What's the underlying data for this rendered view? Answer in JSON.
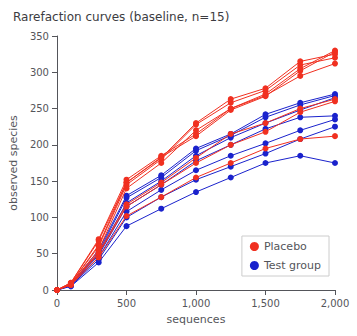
{
  "chart_data": {
    "type": "line",
    "title": "Rarefaction curves (baseline, n=15)",
    "xlabel": "sequences",
    "ylabel": "observed species",
    "x": [
      0,
      100,
      300,
      500,
      750,
      1000,
      1250,
      1500,
      1750,
      2000
    ],
    "xlim": [
      0,
      2000
    ],
    "ylim": [
      0,
      350
    ],
    "xticks": [
      0,
      500,
      1000,
      1500,
      2000
    ],
    "yticks": [
      0,
      50,
      100,
      150,
      200,
      250,
      300,
      350
    ],
    "grid": false,
    "legend": "lower right",
    "marker": "circle",
    "series": [
      {
        "name": "Placebo",
        "color": "#f03020",
        "values": [
          0,
          10,
          70,
          152,
          185,
          215,
          250,
          270,
          305,
          330
        ]
      },
      {
        "name": "Placebo",
        "color": "#f03020",
        "values": [
          0,
          10,
          68,
          148,
          183,
          212,
          248,
          267,
          302,
          328
        ]
      },
      {
        "name": "Placebo",
        "color": "#f03020",
        "values": [
          0,
          9,
          62,
          148,
          182,
          230,
          263,
          278,
          315,
          325
        ]
      },
      {
        "name": "Placebo",
        "color": "#f03020",
        "values": [
          0,
          9,
          60,
          145,
          180,
          228,
          258,
          275,
          310,
          320
        ]
      },
      {
        "name": "Placebo",
        "color": "#f03020",
        "values": [
          0,
          8,
          55,
          140,
          175,
          220,
          250,
          268,
          295,
          312
        ]
      },
      {
        "name": "Placebo",
        "color": "#f03020",
        "values": [
          0,
          8,
          52,
          118,
          148,
          182,
          215,
          230,
          250,
          263
        ]
      },
      {
        "name": "Placebo",
        "color": "#f03020",
        "values": [
          0,
          7,
          50,
          115,
          145,
          175,
          200,
          218,
          245,
          260
        ]
      },
      {
        "name": "Placebo",
        "color": "#f03020",
        "values": [
          0,
          7,
          45,
          102,
          128,
          155,
          175,
          195,
          208,
          212
        ]
      },
      {
        "name": "Test group",
        "color": "#1a22cc",
        "values": [
          0,
          8,
          55,
          130,
          158,
          195,
          215,
          242,
          258,
          270
        ]
      },
      {
        "name": "Test group",
        "color": "#1a22cc",
        "values": [
          0,
          8,
          52,
          127,
          155,
          192,
          213,
          238,
          255,
          268
        ]
      },
      {
        "name": "Test group",
        "color": "#1a22cc",
        "values": [
          0,
          7,
          50,
          120,
          150,
          185,
          210,
          230,
          248,
          265
        ]
      },
      {
        "name": "Test group",
        "color": "#1a22cc",
        "values": [
          0,
          7,
          48,
          115,
          145,
          178,
          200,
          222,
          238,
          240
        ]
      },
      {
        "name": "Test group",
        "color": "#1a22cc",
        "values": [
          0,
          6,
          45,
          108,
          138,
          165,
          185,
          202,
          220,
          235
        ]
      },
      {
        "name": "Test group",
        "color": "#1a22cc",
        "values": [
          0,
          6,
          42,
          100,
          128,
          152,
          170,
          188,
          208,
          225
        ]
      },
      {
        "name": "Test group",
        "color": "#1a22cc",
        "values": [
          0,
          5,
          38,
          88,
          112,
          135,
          155,
          175,
          185,
          175
        ]
      }
    ]
  }
}
